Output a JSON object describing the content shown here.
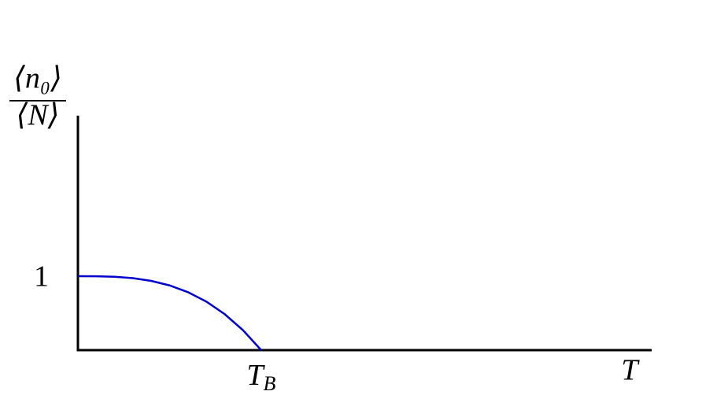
{
  "chart_data": {
    "type": "line",
    "y_label": {
      "numerator": "⟨n₀⟩",
      "denominator": "⟨N⟩"
    },
    "x_label": "T",
    "x": [
      0,
      0.1,
      0.2,
      0.3,
      0.4,
      0.5,
      0.6,
      0.7,
      0.8,
      0.9,
      1
    ],
    "series": [
      {
        "color": "#0000cc",
        "values": [
          1,
          0.999,
          0.992,
          0.973,
          0.936,
          0.875,
          0.784,
          0.657,
          0.488,
          0.271,
          0
        ]
      }
    ],
    "xlim": [
      0,
      3.13
    ],
    "ylim": [
      0,
      3.17
    ],
    "xticks": [
      {
        "value": 1,
        "label": "T",
        "subscript": "B"
      }
    ],
    "yticks": [
      1
    ]
  }
}
